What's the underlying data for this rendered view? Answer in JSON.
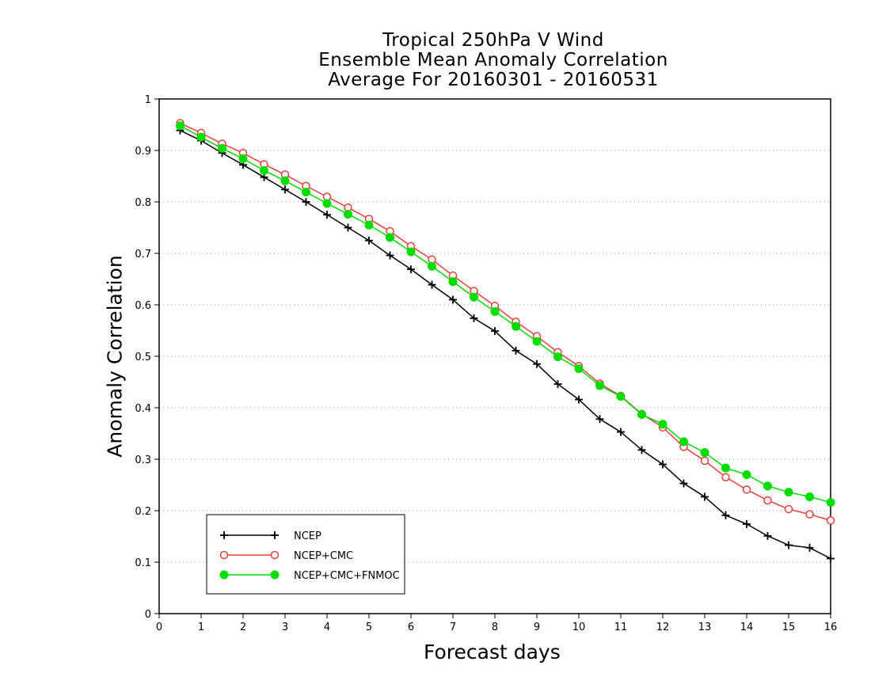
{
  "chart_data": {
    "type": "line",
    "title": [
      "Tropical 250hPa V Wind",
      "Ensemble Mean Anomaly Correlation",
      "Average For 20160301 - 20160531"
    ],
    "xlabel": "Forecast days",
    "ylabel": "Anomaly Correlation",
    "xlim": [
      0,
      16
    ],
    "ylim": [
      0,
      1
    ],
    "xticks": [
      "0",
      "1",
      "2",
      "3",
      "4",
      "5",
      "6",
      "7",
      "8",
      "9",
      "10",
      "11",
      "12",
      "13",
      "14",
      "15",
      "16"
    ],
    "yticks": [
      "0",
      "0.1",
      "0.2",
      "0.3",
      "0.4",
      "0.5",
      "0.6",
      "0.7",
      "0.8",
      "0.9",
      "1"
    ],
    "grid": "horizontal dotted",
    "legend_position": "bottom-left",
    "x": [
      0.5,
      1,
      1.5,
      2,
      2.5,
      3,
      3.5,
      4,
      4.5,
      5,
      5.5,
      6,
      6.5,
      7,
      7.5,
      8,
      8.5,
      9,
      9.5,
      10,
      10.5,
      11,
      11.5,
      12,
      12.5,
      13,
      13.5,
      14,
      14.5,
      15,
      15.5,
      16
    ],
    "series": [
      {
        "name": "NCEP",
        "color": "#000000",
        "marker": "plus",
        "values": [
          0.939,
          0.919,
          0.895,
          0.872,
          0.848,
          0.824,
          0.8,
          0.775,
          0.75,
          0.725,
          0.696,
          0.669,
          0.639,
          0.61,
          0.574,
          0.549,
          0.511,
          0.485,
          0.446,
          0.416,
          0.378,
          0.353,
          0.318,
          0.29,
          0.253,
          0.227,
          0.191,
          0.174,
          0.151,
          0.133,
          0.128,
          0.107
        ]
      },
      {
        "name": "NCEP+CMC",
        "color": "#e8403c",
        "marker": "open-circle",
        "values": [
          0.953,
          0.934,
          0.913,
          0.895,
          0.873,
          0.853,
          0.831,
          0.81,
          0.789,
          0.767,
          0.743,
          0.714,
          0.688,
          0.657,
          0.627,
          0.598,
          0.567,
          0.539,
          0.508,
          0.481,
          0.447,
          0.423,
          0.388,
          0.362,
          0.324,
          0.297,
          0.265,
          0.241,
          0.22,
          0.203,
          0.193,
          0.181
        ]
      },
      {
        "name": "NCEP+CMC+FNMOC",
        "color": "#00dd00",
        "marker": "filled-circle",
        "values": [
          0.948,
          0.926,
          0.904,
          0.884,
          0.861,
          0.841,
          0.819,
          0.797,
          0.776,
          0.755,
          0.731,
          0.703,
          0.675,
          0.645,
          0.615,
          0.587,
          0.558,
          0.529,
          0.499,
          0.476,
          0.443,
          0.422,
          0.387,
          0.368,
          0.334,
          0.313,
          0.283,
          0.27,
          0.248,
          0.236,
          0.227,
          0.216
        ]
      }
    ]
  }
}
